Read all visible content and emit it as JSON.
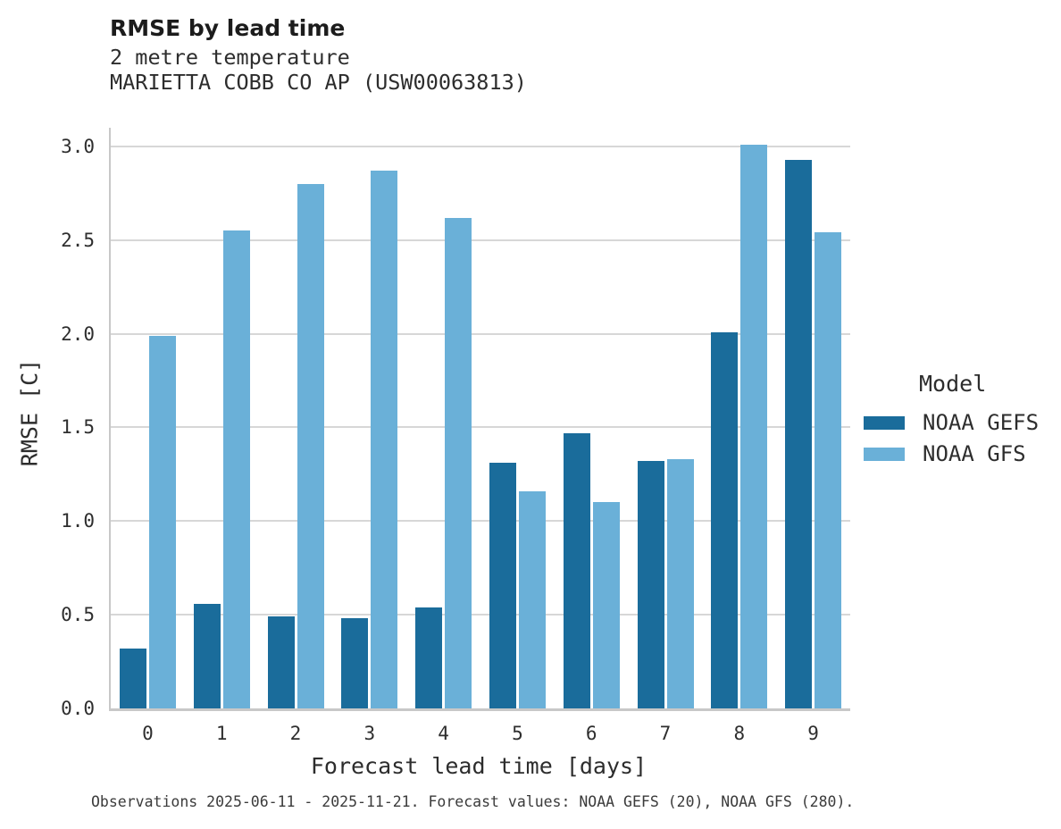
{
  "header": {
    "title": "RMSE by lead time",
    "subtitle_variable": "2 metre temperature",
    "subtitle_station": "MARIETTA COBB CO AP (USW00063813)"
  },
  "legend": {
    "title": "Model",
    "entries": [
      "NOAA GEFS",
      "NOAA GFS"
    ]
  },
  "footer": {
    "caption": "Observations 2025-06-11 - 2025-11-21. Forecast values: NOAA GEFS (20), NOAA GFS (280)."
  },
  "colors": {
    "noaa_gefs": "#1a6c9b",
    "noaa_gfs": "#6ab0d8",
    "grid": "#d7d7d7",
    "spine": "#c8c8c8",
    "text": "#2d2d2d"
  },
  "chart_data": {
    "type": "bar",
    "title": "RMSE by lead time",
    "subtitle": [
      "2 metre temperature",
      "MARIETTA COBB CO AP (USW00063813)"
    ],
    "categories": [
      "0",
      "1",
      "2",
      "3",
      "4",
      "5",
      "6",
      "7",
      "8",
      "9"
    ],
    "series": [
      {
        "name": "NOAA GEFS",
        "color": "#1a6c9b",
        "values": [
          0.32,
          0.56,
          0.49,
          0.48,
          0.54,
          1.31,
          1.47,
          1.32,
          2.01,
          2.93
        ]
      },
      {
        "name": "NOAA GFS",
        "color": "#6ab0d8",
        "values": [
          1.99,
          2.55,
          2.8,
          2.87,
          2.62,
          1.16,
          1.1,
          1.33,
          3.01,
          2.54
        ]
      }
    ],
    "xlabel": "Forecast lead time [days]",
    "ylabel": "RMSE [C]",
    "ylim": [
      0,
      3.1
    ],
    "yticks": [
      0.0,
      0.5,
      1.0,
      1.5,
      2.0,
      2.5,
      3.0
    ],
    "grid": true,
    "legend_title": "Model",
    "legend_position": "right",
    "caption": "Observations 2025-06-11 - 2025-11-21. Forecast values: NOAA GEFS (20), NOAA GFS (280)."
  }
}
